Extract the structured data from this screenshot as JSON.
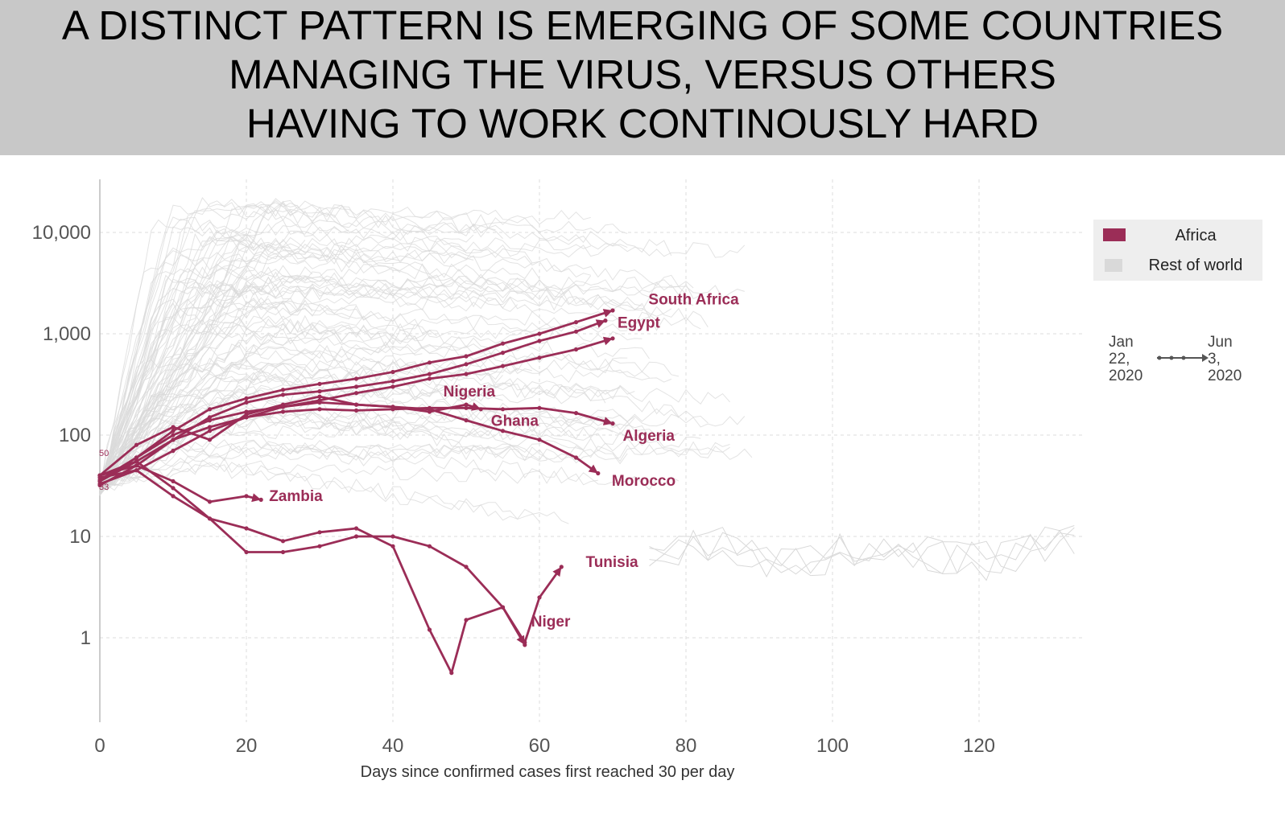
{
  "headline": {
    "lines": [
      "A DISTINCT PATTERN IS EMERGING OF SOME COUNTRIES",
      "MANAGING THE VIRUS, VERSUS OTHERS",
      "HAVING TO WORK CONTINOUSLY HARD"
    ]
  },
  "colors": {
    "africa": "#9b2d57",
    "rest_of_world": "#d9d9d9",
    "banner": "#c8c8c8"
  },
  "chart_data": {
    "type": "line",
    "xlabel": "Days since confirmed cases first reached 30 per day",
    "ylabel": "",
    "xlim": [
      0,
      135
    ],
    "ylim": [
      0.2,
      25000
    ],
    "y_scale": "log",
    "grid": true,
    "x_ticks": [
      0,
      20,
      40,
      60,
      80,
      100,
      120
    ],
    "x_tick_labels": [
      "0",
      "20",
      "40",
      "60",
      "80",
      "100",
      "120"
    ],
    "y_ticks": [
      1,
      10,
      100,
      1000,
      10000
    ],
    "y_tick_labels": [
      "1",
      "10",
      "100",
      "1,000",
      "10,000"
    ],
    "start_labels": [
      "50",
      "33"
    ],
    "legend": {
      "position": "top-right",
      "entries": [
        {
          "name": "Africa",
          "color": "#9b2d57"
        },
        {
          "name": "Rest of world",
          "color": "#d9d9d9"
        }
      ]
    },
    "time_note": {
      "start": [
        "Jan",
        "22,",
        "2020"
      ],
      "end": [
        "Jun",
        "3,",
        "2020"
      ]
    },
    "series": [
      {
        "name": "South Africa",
        "group": "Africa",
        "x": [
          0,
          5,
          10,
          15,
          20,
          25,
          30,
          35,
          40,
          45,
          50,
          55,
          60,
          65,
          70
        ],
        "y": [
          35,
          60,
          110,
          180,
          230,
          280,
          320,
          360,
          420,
          520,
          600,
          800,
          1000,
          1300,
          1700
        ]
      },
      {
        "name": "Egypt",
        "group": "Africa",
        "x": [
          0,
          5,
          10,
          15,
          20,
          25,
          30,
          35,
          40,
          45,
          50,
          55,
          60,
          65,
          69
        ],
        "y": [
          32,
          50,
          90,
          150,
          210,
          250,
          270,
          300,
          340,
          400,
          500,
          650,
          850,
          1050,
          1350
        ]
      },
      {
        "name": "Nigeria",
        "group": "Africa",
        "x": [
          0,
          5,
          10,
          15,
          20,
          25,
          30,
          35,
          40,
          45,
          50,
          55,
          60,
          65,
          70
        ],
        "y": [
          33,
          45,
          70,
          110,
          150,
          190,
          220,
          260,
          300,
          360,
          400,
          480,
          580,
          700,
          900
        ]
      },
      {
        "name": "Ghana",
        "group": "Africa",
        "x": [
          0,
          5,
          10,
          15,
          20,
          25,
          30,
          35,
          40,
          45,
          50,
          52
        ],
        "y": [
          40,
          80,
          120,
          90,
          160,
          200,
          240,
          200,
          190,
          170,
          200,
          180
        ]
      },
      {
        "name": "Algeria",
        "group": "Africa",
        "x": [
          0,
          5,
          10,
          15,
          20,
          25,
          30,
          35,
          40,
          45,
          50,
          55,
          60,
          65,
          70
        ],
        "y": [
          35,
          55,
          90,
          120,
          150,
          170,
          180,
          175,
          180,
          185,
          185,
          180,
          185,
          165,
          130
        ]
      },
      {
        "name": "Morocco",
        "group": "Africa",
        "x": [
          0,
          5,
          10,
          15,
          20,
          25,
          30,
          35,
          40,
          45,
          50,
          55,
          60,
          65,
          68
        ],
        "y": [
          36,
          60,
          100,
          140,
          170,
          190,
          210,
          200,
          190,
          180,
          140,
          110,
          90,
          60,
          42
        ]
      },
      {
        "name": "Zambia",
        "group": "Africa",
        "x": [
          0,
          5,
          10,
          15,
          20,
          22
        ],
        "y": [
          40,
          50,
          35,
          22,
          25,
          23
        ]
      },
      {
        "name": "Tunisia",
        "group": "Africa",
        "x": [
          0,
          5,
          10,
          15,
          20,
          25,
          30,
          35,
          40,
          45,
          50,
          55,
          58,
          60,
          63
        ],
        "y": [
          40,
          55,
          30,
          15,
          7,
          7,
          8,
          10,
          10,
          8,
          5,
          2,
          0.9,
          2.5,
          5
        ]
      },
      {
        "name": "Niger",
        "group": "Africa",
        "x": [
          0,
          5,
          10,
          15,
          20,
          25,
          30,
          35,
          40,
          45,
          48,
          50,
          55,
          58
        ],
        "y": [
          38,
          45,
          25,
          15,
          12,
          9,
          11,
          12,
          8,
          1.2,
          0.45,
          1.5,
          2,
          0.85
        ]
      }
    ],
    "labels": [
      "South Africa",
      "Egypt",
      "Nigeria",
      "Ghana",
      "Algeria",
      "Morocco",
      "Zambia",
      "Tunisia",
      "Niger"
    ],
    "label_anchors": [
      {
        "name": "South Africa",
        "x": 74,
        "y": 1750
      },
      {
        "name": "Egypt",
        "x": 70,
        "y": 1300
      },
      {
        "name": "Nigeria",
        "x": 46,
        "y": 360
      },
      {
        "name": "Ghana",
        "x": 52.5,
        "y": 165
      },
      {
        "name": "Algeria",
        "x": 70.5,
        "y": 110
      },
      {
        "name": "Morocco",
        "x": 69,
        "y": 38
      },
      {
        "name": "Zambia",
        "x": 22,
        "y": 24
      },
      {
        "name": "Tunisia",
        "x": 65,
        "y": 5.2
      },
      {
        "name": "Niger",
        "x": 58,
        "y": 1.25
      }
    ]
  }
}
